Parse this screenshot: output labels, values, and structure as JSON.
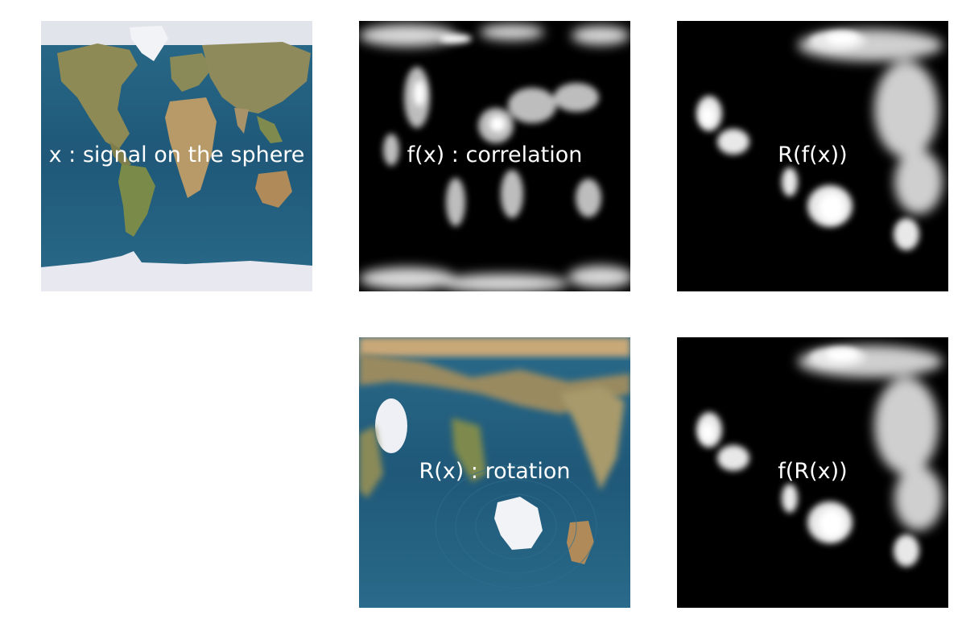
{
  "panels": {
    "x": {
      "caption": "x : signal on the sphere",
      "image": "world-map-equirectangular"
    },
    "fx": {
      "caption": "f(x) : correlation",
      "image": "grayscale-correlation-map"
    },
    "rfx": {
      "caption": "R(f(x))",
      "image": "rotated-grayscale-correlation-map"
    },
    "rx": {
      "caption": "R(x) : rotation",
      "image": "rotated-world-map"
    },
    "frx": {
      "caption": "f(R(x))",
      "image": "grayscale-correlation-of-rotated-map"
    }
  },
  "colors": {
    "ocean": "#1f5878",
    "land": "#9a8a5a",
    "ice": "#e6e8ef",
    "background_dark": "#000000",
    "caption_text": "#ffffff"
  }
}
